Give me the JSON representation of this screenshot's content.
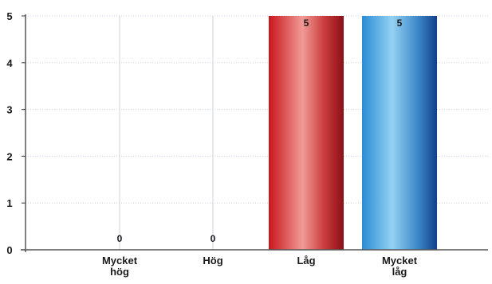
{
  "chart_data": {
    "type": "bar",
    "categories": [
      "Mycket\nhög",
      "Hög",
      "Låg",
      "Mycket\nlåg"
    ],
    "values": [
      0,
      0,
      5,
      5
    ],
    "data_labels": [
      "0",
      "0",
      "5",
      "5"
    ],
    "yticks": [
      "0",
      "1",
      "2",
      "3",
      "4",
      "5"
    ],
    "ylim": [
      0,
      5
    ],
    "grid": true,
    "legend": "none",
    "colors": {
      "red_dark": "#a8141c",
      "red_light": "#f4a6a2",
      "blue_dark": "#1a56a6",
      "blue_light": "#8fd0f2",
      "axis": "#555555",
      "grid": "#c9d3e6"
    }
  }
}
